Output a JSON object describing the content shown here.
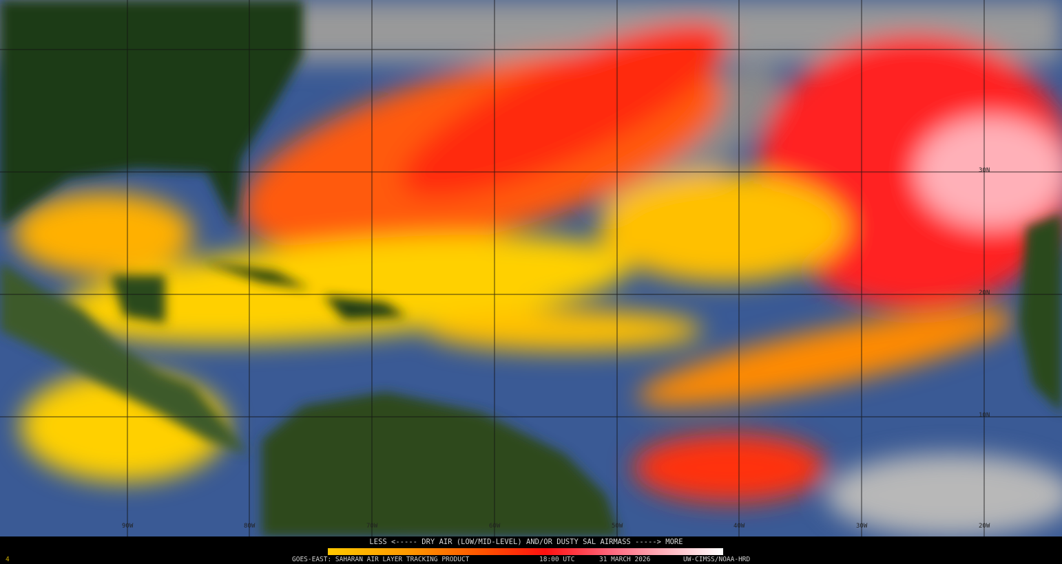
{
  "map": {
    "latitude_labels": [
      "30N",
      "20N",
      "10N"
    ],
    "longitude_labels": [
      "90W",
      "80W",
      "70W",
      "60W",
      "50W",
      "40W",
      "30W",
      "20W"
    ]
  },
  "legend": {
    "title": "LESS <----- DRY AIR (LOW/MID-LEVEL) AND/OR DUSTY SAL AIRMASS -----> MORE",
    "colors": [
      "#ffc800",
      "#ff9a00",
      "#ff5000",
      "#ff1010",
      "#ff6a80",
      "#ffc0c8",
      "#ffffff"
    ]
  },
  "footer": {
    "frame": "4",
    "product": "GOES-EAST: SAHARAN AIR LAYER TRACKING PRODUCT",
    "time": "18:00 UTC",
    "date": "31 MARCH 2026",
    "credit": "UW-CIMSS/NOAA-HRD"
  }
}
